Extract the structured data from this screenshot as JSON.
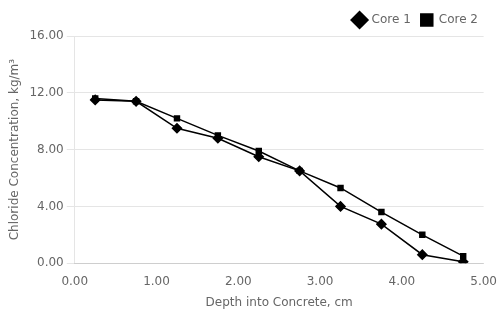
{
  "chart_data": {
    "type": "line",
    "xlabel": "Depth into Concrete, cm",
    "ylabel": "Chloride Concentration, kg/m³",
    "x": [
      0.25,
      0.75,
      1.25,
      1.75,
      2.25,
      2.75,
      3.25,
      3.75,
      4.25,
      4.75
    ],
    "series": [
      {
        "name": "Core 1",
        "color": "#000000",
        "marker": "diamond",
        "values": [
          11.5,
          11.4,
          9.5,
          8.8,
          7.5,
          6.5,
          4.0,
          2.75,
          0.6,
          0.1
        ]
      },
      {
        "name": "Core 2",
        "color": "#000000",
        "marker": "square",
        "values": [
          11.6,
          11.4,
          10.2,
          9.0,
          7.9,
          6.5,
          5.3,
          3.6,
          2.0,
          0.5
        ]
      }
    ],
    "xlim": [
      0.0,
      5.0
    ],
    "ylim": [
      0.0,
      16.0
    ],
    "xticks": [
      {
        "value": 0,
        "label": "0.00"
      },
      {
        "value": 1,
        "label": "1.00"
      },
      {
        "value": 2,
        "label": "2.00"
      },
      {
        "value": 3,
        "label": "3.00"
      },
      {
        "value": 4,
        "label": "4.00"
      },
      {
        "value": 5,
        "label": "5.00"
      }
    ],
    "yticks": [
      {
        "value": 0,
        "label": "0.00"
      },
      {
        "value": 4,
        "label": "4.00"
      },
      {
        "value": 8,
        "label": "8.00"
      },
      {
        "value": 12,
        "label": "12.00"
      },
      {
        "value": 16,
        "label": "16.00"
      }
    ],
    "grid": "y",
    "legend": "upper right"
  }
}
